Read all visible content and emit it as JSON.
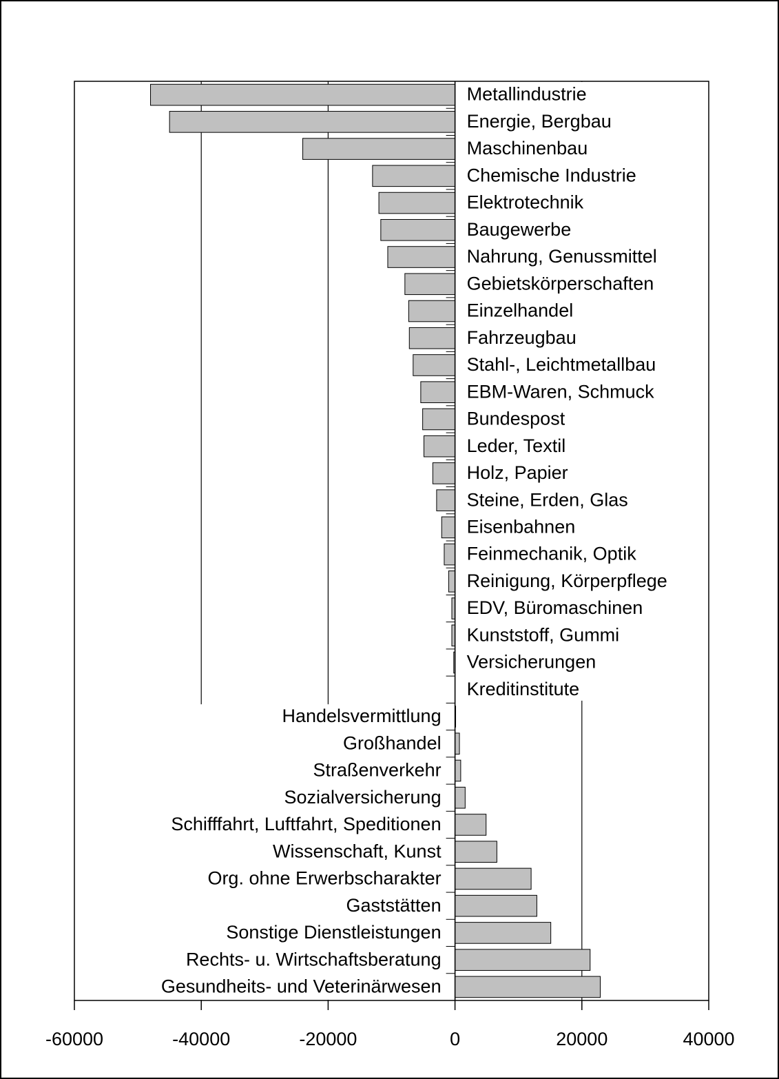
{
  "chart_data": {
    "type": "barh",
    "categories": [
      "Metallindustrie",
      "Energie, Bergbau",
      "Maschinenbau",
      "Chemische Industrie",
      "Elektrotechnik",
      "Baugewerbe",
      "Nahrung, Genussmittel",
      "Gebietskörperschaften",
      "Einzelhandel",
      "Fahrzeugbau",
      "Stahl-, Leichtmetallbau",
      "EBM-Waren, Schmuck",
      "Bundespost",
      "Leder, Textil",
      "Holz, Papier",
      "Steine, Erden, Glas",
      "Eisenbahnen",
      "Feinmechanik, Optik",
      "Reinigung, Körperpflege",
      "EDV, Büromaschinen",
      "Kunststoff, Gummi",
      "Versicherungen",
      "Kreditinstitute",
      "Handelsvermittlung",
      "Großhandel",
      "Straßenverkehr",
      "Sozialversicherung",
      "Schifffahrt, Luftfahrt, Speditionen",
      "Wissenschaft, Kunst",
      "Org. ohne Erwerbscharakter",
      "Gaststätten",
      "Sonstige Dienstleistungen",
      "Rechts- u. Wirtschaftsberatung",
      "Gesundheits- und Veterinärwesen"
    ],
    "values": [
      -48000,
      -45000,
      -24000,
      -13000,
      -12000,
      -11700,
      -10600,
      -7900,
      -7300,
      -7200,
      -6600,
      -5400,
      -5100,
      -4900,
      -3500,
      -2900,
      -2100,
      -1700,
      -1000,
      -500,
      -500,
      -200,
      0,
      100,
      700,
      900,
      1600,
      4900,
      6600,
      12000,
      12900,
      15100,
      21300,
      22900
    ],
    "color": "#c0c0c0",
    "xlim": [
      -60000,
      40000
    ],
    "xticks": [
      -60000,
      -40000,
      -20000,
      0,
      20000,
      40000
    ],
    "grid": true
  }
}
